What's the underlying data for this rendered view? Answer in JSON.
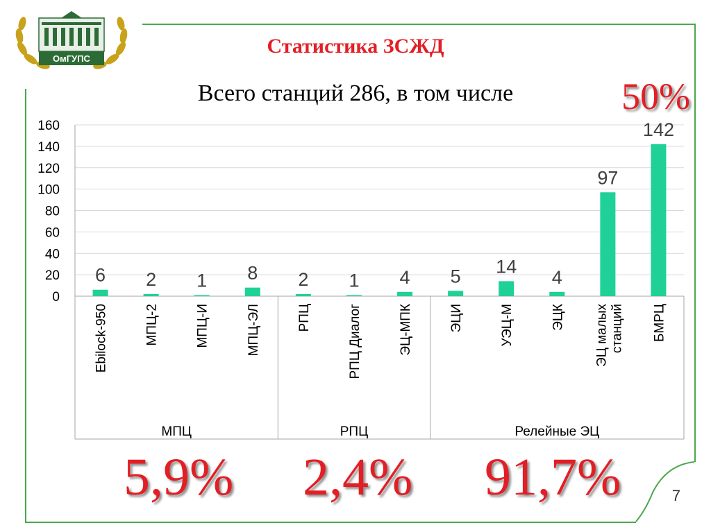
{
  "slide": {
    "title": "Статистика ЗСЖД",
    "subtitle": "Всего станций 286, в том числе",
    "total_share": "50%",
    "page_number": "7",
    "logo_text": "ОмГУПС",
    "group_shares": [
      "5,9%",
      "2,4%",
      "91,7%"
    ]
  },
  "colors": {
    "bar": "#1fd197",
    "accent": "#e31e24",
    "frame": "#4aa84a"
  },
  "chart_data": {
    "type": "bar",
    "title": "",
    "xlabel": "",
    "ylabel": "",
    "ylim": [
      0,
      160
    ],
    "yticks": [
      0,
      20,
      40,
      60,
      80,
      100,
      120,
      140,
      160
    ],
    "grid": true,
    "legend": "none",
    "categories": [
      "Ebilock-950",
      "МПЦ-2",
      "МПЦ-И",
      "МПЦ-ЭЛ",
      "РПЦ",
      "РПЦ Диалог",
      "ЭЦ-МПК",
      "ЭЦИ",
      "УЭЦ-М",
      "ЭЦК",
      "ЭЦ малых станций",
      "БМРЦ"
    ],
    "category_lines": [
      [
        "Ebilock-950"
      ],
      [
        "МПЦ-2"
      ],
      [
        "МПЦ-И"
      ],
      [
        "МПЦ-ЭЛ"
      ],
      [
        "РПЦ"
      ],
      [
        "РПЦ Диалог"
      ],
      [
        "ЭЦ-МПК"
      ],
      [
        "ЭЦИ"
      ],
      [
        "УЭЦ-М"
      ],
      [
        "ЭЦК"
      ],
      [
        "ЭЦ малых",
        "станций"
      ],
      [
        "БМРЦ"
      ]
    ],
    "values": [
      6,
      2,
      1,
      8,
      2,
      1,
      4,
      5,
      14,
      4,
      97,
      142
    ],
    "data_labels": [
      "6",
      "2",
      "1",
      "8",
      "2",
      "1",
      "4",
      "5",
      "14",
      "4",
      "97",
      "142"
    ],
    "groups": [
      {
        "name": "МПЦ",
        "count": 4
      },
      {
        "name": "РПЦ",
        "count": 3
      },
      {
        "name": "Релейные ЭЦ",
        "count": 5
      }
    ]
  }
}
